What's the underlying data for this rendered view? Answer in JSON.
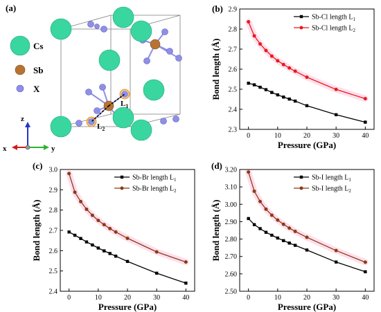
{
  "structure": {
    "label": "(a)",
    "legend": [
      {
        "name": "Cs",
        "color": "#3ad6a0"
      },
      {
        "name": "Sb",
        "color": "#b87333"
      },
      {
        "name": "X",
        "color": "#8f8fe8"
      }
    ],
    "bond_labels": [
      "L",
      "L"
    ],
    "bond_subscripts": [
      "1",
      "2"
    ],
    "axes": {
      "z": "z",
      "x": "x",
      "y": "y"
    }
  },
  "chart_data": [
    {
      "label": "(b)",
      "type": "line",
      "xlabel": "Pressure (GPa)",
      "ylabel": "Bond length (Å)",
      "xlim": [
        -3,
        43
      ],
      "ylim": [
        2.3,
        2.9
      ],
      "xticks": [
        0,
        10,
        20,
        30,
        40
      ],
      "yticks": [
        2.3,
        2.4,
        2.5,
        2.6,
        2.7,
        2.8,
        2.9
      ],
      "tick_format": 1,
      "legend_position": "top-right",
      "grid": false,
      "x": [
        0,
        2,
        4,
        6,
        8,
        10,
        12,
        14,
        16,
        20,
        30,
        40
      ],
      "series": [
        {
          "name": "Sb-Cl length L",
          "sub": "1",
          "color": "#000000",
          "marker": "square",
          "values": [
            2.53,
            2.522,
            2.51,
            2.498,
            2.484,
            2.472,
            2.461,
            2.451,
            2.441,
            2.418,
            2.373,
            2.336
          ]
        },
        {
          "name": "Sb-Cl length L",
          "sub": "2",
          "color": "#e8191a",
          "marker": "circle",
          "values": [
            2.836,
            2.766,
            2.726,
            2.693,
            2.665,
            2.642,
            2.623,
            2.606,
            2.59,
            2.56,
            2.499,
            2.453
          ]
        }
      ]
    },
    {
      "label": "(c)",
      "type": "line",
      "xlabel": "Pressure (GPa)",
      "ylabel": "Bond length (Å)",
      "xlim": [
        -3,
        43
      ],
      "ylim": [
        2.4,
        3.0
      ],
      "xticks": [
        0,
        10,
        20,
        30,
        40
      ],
      "yticks": [
        2.4,
        2.5,
        2.6,
        2.7,
        2.8,
        2.9,
        3.0
      ],
      "tick_format": 1,
      "legend_position": "top-right",
      "grid": false,
      "x": [
        0,
        2,
        4,
        6,
        8,
        10,
        12,
        14,
        16,
        20,
        30,
        40
      ],
      "series": [
        {
          "name": "Sb-Br length L",
          "sub": "1",
          "color": "#000000",
          "marker": "square",
          "values": [
            2.692,
            2.676,
            2.66,
            2.643,
            2.628,
            2.613,
            2.599,
            2.586,
            2.573,
            2.547,
            2.489,
            2.44
          ]
        },
        {
          "name": "Sb-Br length L",
          "sub": "2",
          "color": "#8b3a16",
          "marker": "circle",
          "values": [
            2.98,
            2.888,
            2.842,
            2.804,
            2.774,
            2.749,
            2.728,
            2.709,
            2.692,
            2.661,
            2.594,
            2.544
          ]
        }
      ]
    },
    {
      "label": "(d)",
      "type": "line",
      "xlabel": "Pressure (GPa)",
      "ylabel": "Bond length (Å)",
      "xlim": [
        -3,
        43
      ],
      "ylim": [
        2.5,
        3.2
      ],
      "xticks": [
        0,
        10,
        20,
        30,
        40
      ],
      "yticks": [
        2.5,
        2.6,
        2.7,
        2.8,
        2.9,
        3.0,
        3.1,
        3.2
      ],
      "tick_format": 2,
      "legend_position": "top-right",
      "grid": false,
      "x": [
        0,
        2,
        4,
        6,
        8,
        10,
        12,
        14,
        16,
        20,
        30,
        40
      ],
      "series": [
        {
          "name": "Sb-I length L",
          "sub": "1",
          "color": "#000000",
          "marker": "square",
          "values": [
            2.918,
            2.883,
            2.86,
            2.839,
            2.822,
            2.806,
            2.791,
            2.777,
            2.764,
            2.737,
            2.668,
            2.612
          ]
        },
        {
          "name": "Sb-I length L",
          "sub": "2",
          "color": "#8b3a16",
          "marker": "circle",
          "values": [
            3.185,
            3.075,
            3.016,
            2.972,
            2.937,
            2.909,
            2.885,
            2.863,
            2.844,
            2.81,
            2.734,
            2.667
          ]
        }
      ]
    }
  ]
}
